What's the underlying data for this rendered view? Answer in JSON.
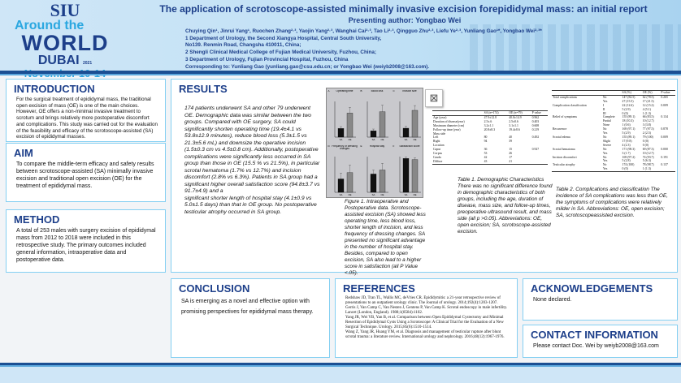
{
  "header": {
    "logo": {
      "line1": "SIU",
      "line2": "Around the",
      "line3": "WORLD",
      "line4": "DUBAI",
      "year": "2021",
      "dates": "November 10-14"
    },
    "title": "The application of scrotoscope-assisted minimally invasive excision forepididymal mass: an initial report",
    "presenting_author": "Presenting author: Yongbao Wei",
    "authors": "Chuying Qin¹, Jinrui Yang¹, Ruochen Zhang²·³, Yaojin Yang²·³, Wanghai Cai²·³, Tao Li²·³, Qingguo Zhu²·³, Liefu Ye²·³, Yunliang Gao¹*, Yongbao Wei²·³*",
    "affiliations": [
      "1 Department of Urology, the Second Xiangya Hospital, Central South University,",
      "No139. Renmin Road, Changsha 410011, China;",
      "2 Shengli Clinical Medical College of Fujian Medical University, Fuzhou, China;",
      "3 Department of Urology, Fujian Provincial Hospital, Fuzhou, China"
    ],
    "corresponding": "Corresponding to: Yunliang Gao (yunliang.gao@csu.edu.cn; or Yongbao Wei (weiyb2008@163.com)."
  },
  "intro": {
    "title": "INTRODUCTION",
    "text": "For the surgical treatment of epididymal mass, the traditional open excision of mass (OE) is one of the main choices. However, OE offers a non-minimal invasive treatment to scrotum and brings relatively more postoperative discomfort and complications. This study was carried out for the evaluation of the feasibility and efficacy of the scrotoscope-assisted (SA) excision of epididymal masses."
  },
  "aim": {
    "title": "AIM",
    "text": "To compare the middle-term efficacy and safety results between scrotoscope-assisted (SA) minimally invasive excision and traditional open excision (OE) for the treatment of epididymal mass."
  },
  "method": {
    "title": "METHOD",
    "text": "A total of 253 males with surgery excision of epididymal mass from 2012 to 2018 were included in this retrospective study. The primary outcomes included general information, intraoperative data and postoperative data."
  },
  "results": {
    "title": "RESULTS",
    "text": "174 patients underwent SA and other 79 underwent OE. Demographic data was similar between the two groups. Compared with OE surgery, SA could significantly shorten operating time (19.4±4.1 vs 53.8±12.9 minutes), reduce blood loss (5.3±1.5 vs 21.3±5.6 mL) and downsize the operative incision (1.5±0.3 cm vs 4.5±0.8 cm). Additionally, postoperative complications were significantly less occurred in SA group than those in OE (15.5 % vs 21.5%), in particular scrotal hematoma (1.7% vs 12.7%) and incision discomfort (2.8% vs 6.3%). Patients in SA group had a significant higher overall satisfaction score (94.8±3.7 vs 91.7±4.9) and a",
    "text2": "significant shorter length of hospital stay (4.1±0.9 vs 5.0±1.5 days) than that in OE group. No postoperative testicular atrophy occurred in SA group.",
    "figure_caption": "Figure 1. Intraoperative and Postoperative data. Scrotoscope-assisted excision (SA) showed less operating time, less blood loss, shorter length of incision, and less frequency of dressing changes. SA presented no significant advantage in the number of hospital stay. Besides, compared to open excision, SA also lead to a higher score in satisfaction (all P Value <.05).",
    "table1_caption": "Table 1. Demographic Characteristics There was no significant difference found in demographic characteristics of both groups, including the age, duration of disease, mass size, and follow-up times, preoperative ultrasound result, and mass side (all p >0.05). Abbreviations: OE, open excision; SA, scrotoscope-assisted excision.",
    "table2_caption": "Table 2. Complications and classification The incidence of SA complications was less than OE, the symptoms of complications were relatively milder in SA. Abbreviations: OE, open excision; SA, scrotoscopeassisted excision.",
    "placeholder_icon": "image-placeholder-icon"
  },
  "table1": {
    "headers": [
      "",
      "SA (n=174)",
      "OE (n=79)",
      "P value"
    ],
    "rows": [
      [
        "Age (year)",
        "47.9±12.8",
        "40.0±14.9",
        "0.962"
      ],
      [
        "Duration of disease(year)",
        "2.5±.6",
        "2.5±0.6",
        "0.403"
      ],
      [
        "Maximum diameter (cm)",
        "3.2±1.1",
        "3.1±1.1",
        "0.608"
      ],
      [
        "Follow-up time (year)",
        "20.8±8.3",
        "19.4±8.6",
        "0.219"
      ],
      [
        "Mass side",
        "",
        "",
        ""
      ],
      [
        "  Left",
        "80",
        "40",
        "0.492"
      ],
      [
        "  Right",
        "94",
        "39",
        ""
      ],
      [
        "Location",
        "",
        "",
        ""
      ],
      [
        "  Caput",
        "36",
        "15",
        "0.927"
      ],
      [
        "  Corpus",
        "53",
        "26",
        ""
      ],
      [
        "  Cauda",
        "42",
        "17",
        ""
      ],
      [
        "  Diffuse",
        "43",
        "21",
        ""
      ]
    ]
  },
  "table2": {
    "headers": [
      "",
      "",
      "SA (%)",
      "OE (%)",
      "P value"
    ],
    "rows": [
      [
        "Total complications",
        "No",
        "147 (84.5)",
        "62 (78.5)",
        "0.265"
      ],
      [
        "",
        "Yes",
        "27 (15.5)",
        "17 (21.5)",
        ""
      ],
      [
        "Complication classification",
        "I",
        "22 (12.6)",
        "12 (15.2)",
        "0.009"
      ],
      [
        "",
        "II",
        "5 (2.9)",
        "4 (5.1)",
        ""
      ],
      [
        "",
        "III",
        "0 (0)",
        "1 (1.3)",
        ""
      ],
      [
        "Relief of symptoms",
        "Complete",
        "155 (89.1)",
        "66 (83.5)",
        "0.134"
      ],
      [
        "",
        "Partial",
        "18 (10.3)",
        "10 (12.7)",
        ""
      ],
      [
        "",
        "None",
        "1 (0.6)",
        "3 (3.8)",
        ""
      ],
      [
        "Recurrence",
        "No",
        "169 (97.1)",
        "77 (97.5)",
        "0.878"
      ],
      [
        "",
        "Yes",
        "5 (2.9)",
        "2 (2.5)",
        ""
      ],
      [
        "Scrotal edema",
        "No",
        "155 (89.1)",
        "79 (100)",
        "0.009"
      ],
      [
        "",
        "Slight",
        "17 (9.8)",
        "0 (0)",
        ""
      ],
      [
        "",
        "Severe",
        "4 (2.3)",
        "0 (0)",
        ""
      ],
      [
        "Scrotal hematoma",
        "No",
        "171 (98.3)",
        "69 (87.3)",
        "0.000"
      ],
      [
        "",
        "Yes",
        "3 (1.7)",
        "10 (12.7)",
        ""
      ],
      [
        "Incision discomfort",
        "No",
        "169 (97.2)",
        "74 (93.7)",
        "0.191"
      ],
      [
        "",
        "Yes",
        "5 (2.8)",
        "5 (6.3)",
        ""
      ],
      [
        "Testicular atrophy",
        "No",
        "174 (100)",
        "78 (98.7)",
        "0.137"
      ],
      [
        "",
        "Yes",
        "0 (0)",
        "1 (1.3)",
        ""
      ]
    ]
  },
  "conclusion": {
    "title": "CONCLUSION",
    "text": "SA is emerging as a novel and effective option with promising perspectives for epididymal mass therapy."
  },
  "references": {
    "title": "REFERENCES",
    "items": [
      "Redshaw JD, Tran TL, Wallis MC, deVries CR. Epididymitis: a 21-year retrospective review of presentations to an outpatient urology clinic. The Journal of urology. 2014;192(4):1203-1207.",
      "Gerris J, Van Camp C, Van Nesten J, Gentens P, Van Camp K. Scrotal endoscopy in male infertility. Lancet (London, England). 1988;1(8584):1102.",
      "Yang JR, Wei YB, Yan B, et al. Comparison between Open Epididymal Cystectomy and Minimal Resection of Epididymal Cysts Using a Scrotoscope: A Clinical Trial for the Evaluation of a New Surgical Technique. Urology. 2015;85(6):1510-1514.",
      "Wang Z, Yang JR, Huang YM, et al. Diagnosis and management of testicular rupture after blunt scrotal trauma: a literature review. International urology and nephrology. 2016;48(12):1967-1976."
    ]
  },
  "ack": {
    "title": "ACKNOWLEDGEMENTS",
    "text": "None declared."
  },
  "contact": {
    "title": "CONTACT INFORMATION",
    "text": "Please contact Doc. Wei by weiyb2008@163.com"
  },
  "chart_data": [
    {
      "type": "bar",
      "title": "Operating time",
      "panel": "A",
      "categories": [
        "SA",
        "OE"
      ],
      "values": [
        19.4,
        53.8
      ],
      "errors": [
        4.1,
        12.9
      ],
      "ylim": [
        0,
        80
      ]
    },
    {
      "type": "bar",
      "title": "Blood loss",
      "panel": "B",
      "categories": [
        "SA",
        "OE"
      ],
      "values": [
        5.3,
        21.3
      ],
      "errors": [
        1.5,
        5.6
      ],
      "ylim": [
        0,
        30
      ]
    },
    {
      "type": "bar",
      "title": "Incision size",
      "panel": "C",
      "categories": [
        "SA",
        "OE"
      ],
      "values": [
        1.5,
        4.5
      ],
      "errors": [
        0.3,
        0.8
      ],
      "ylim": [
        0,
        6
      ]
    },
    {
      "type": "bar",
      "title": "Frequency of dressing changes",
      "panel": "D",
      "categories": [
        "SA",
        "OE"
      ],
      "values": [
        3,
        4.4
      ],
      "errors": [
        1.3,
        1.7
      ],
      "ylim": [
        0,
        8
      ]
    },
    {
      "type": "bar",
      "title": "Hospital stay",
      "panel": "E",
      "categories": [
        "SA",
        "OE"
      ],
      "values": [
        4.1,
        5.0
      ],
      "errors": [
        0.9,
        1.5
      ],
      "ylim": [
        0,
        8
      ]
    },
    {
      "type": "bar",
      "title": "Satisfaction score",
      "panel": "F",
      "categories": [
        "SA",
        "OE"
      ],
      "values": [
        94.8,
        91.7
      ],
      "errors": [
        3.7,
        4.9
      ],
      "ylim": [
        0,
        100
      ]
    }
  ],
  "colors": {
    "navy": "#1d3f8a",
    "border": "#84cff2",
    "sa_bar": "#111111",
    "oe_bar": "#888888"
  }
}
